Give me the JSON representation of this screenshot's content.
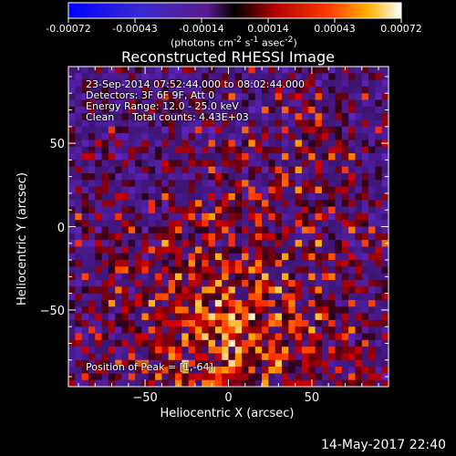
{
  "colorbar": {
    "ticks": [
      "-0.00072",
      "-0.00043",
      "-0.00014",
      "0.00014",
      "0.00043",
      "0.00072"
    ],
    "units_html": "(photons cm<sup>-2</sup> s<sup>-1</sup> asec<sup>-2</sup>)"
  },
  "title": "Reconstructed RHESSI Image",
  "annotations": {
    "line1": "23-Sep-2014 07:52:44.000 to 08:02:44.000",
    "line2": "Detectors: 3F 6F 9F, Att 0",
    "line3": "Energy Range: 12.0 - 25.0 keV",
    "line4_left": "Clean",
    "line4_right": "Total counts: 4.43E+03",
    "peak": "Position of Peak = [1,-64]"
  },
  "footer": {
    "date": "14-May-2017 22:40"
  },
  "chart_data": {
    "type": "heatmap",
    "title": "Reconstructed RHESSI Image",
    "xlabel": "Heliocentric X (arcsec)",
    "ylabel": "Heliocentric Y (arcsec)",
    "xlim": [
      -96,
      96
    ],
    "ylim": [
      -96,
      96
    ],
    "x_ticks": [
      -50,
      0,
      50
    ],
    "x_tick_labels": [
      "−50",
      "0",
      "50"
    ],
    "y_ticks": [
      -50,
      0,
      50
    ],
    "y_tick_labels": [
      "−50",
      "0",
      "50"
    ],
    "colorbar_range": [
      -0.00072,
      0.00072
    ],
    "colormap": "red-temperature (blue negative, black zero, red-yellow-white positive)",
    "peak_position": [
      1,
      -64
    ],
    "grid": false
  }
}
